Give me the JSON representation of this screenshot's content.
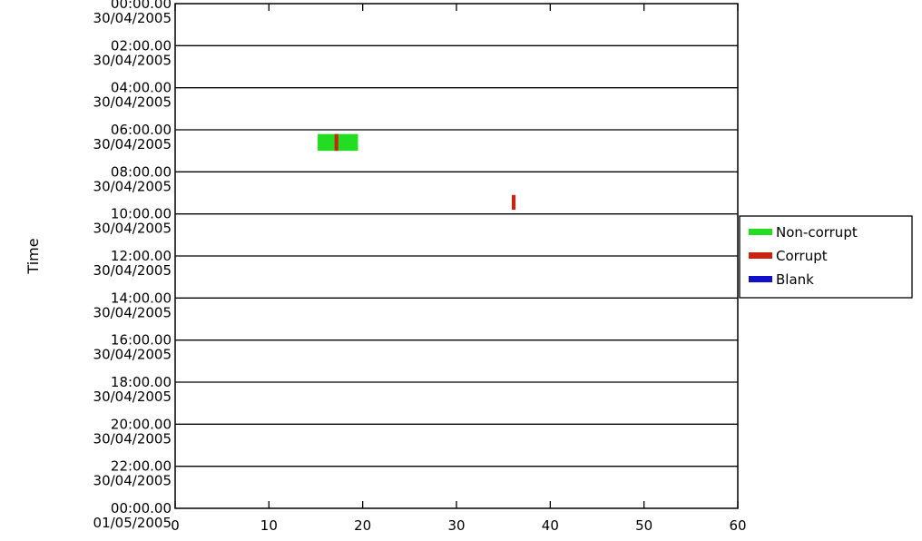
{
  "chart_data": {
    "type": "bar",
    "orientation": "horizontal-timeline",
    "title": "",
    "xlabel": "",
    "ylabel": "Time",
    "xlim": [
      0,
      60
    ],
    "x_ticks": [
      0,
      10,
      20,
      30,
      40,
      50,
      60
    ],
    "x_tick_labels": [
      "0",
      "10",
      "20",
      "30",
      "40",
      "50",
      "60"
    ],
    "y_ticks": [
      {
        "time": "00:00.00",
        "date": "30/04/2005"
      },
      {
        "time": "02:00.00",
        "date": "30/04/2005"
      },
      {
        "time": "04:00.00",
        "date": "30/04/2005"
      },
      {
        "time": "06:00.00",
        "date": "30/04/2005"
      },
      {
        "time": "08:00.00",
        "date": "30/04/2005"
      },
      {
        "time": "10:00.00",
        "date": "30/04/2005"
      },
      {
        "time": "12:00.00",
        "date": "30/04/2005"
      },
      {
        "time": "14:00.00",
        "date": "30/04/2005"
      },
      {
        "time": "16:00.00",
        "date": "30/04/2005"
      },
      {
        "time": "18:00.00",
        "date": "30/04/2005"
      },
      {
        "time": "20:00.00",
        "date": "30/04/2005"
      },
      {
        "time": "22:00.00",
        "date": "30/04/2005"
      },
      {
        "time": "00:00.00",
        "date": "01/05/2005"
      }
    ],
    "ylim_hours": [
      0,
      24
    ],
    "grid": "horizontal",
    "legend": {
      "placement": "right",
      "entries": [
        {
          "name": "Non-corrupt",
          "color": "#22dd22"
        },
        {
          "name": "Corrupt",
          "color": "#cc2211"
        },
        {
          "name": "Blank",
          "color": "#1111cc"
        }
      ]
    },
    "series": [
      {
        "name": "Non-corrupt",
        "color": "#22dd22",
        "segments": [
          {
            "x_start": 15.2,
            "x_end": 19.5,
            "t_start_h": 6.2,
            "t_end_h": 7.0
          }
        ]
      },
      {
        "name": "Corrupt",
        "color": "#cc2211",
        "segments": [
          {
            "x_start": 17.0,
            "x_end": 17.4,
            "t_start_h": 6.2,
            "t_end_h": 7.0
          },
          {
            "x_start": 35.9,
            "x_end": 36.3,
            "t_start_h": 9.1,
            "t_end_h": 9.8
          }
        ]
      },
      {
        "name": "Blank",
        "color": "#1111cc",
        "segments": []
      }
    ]
  }
}
